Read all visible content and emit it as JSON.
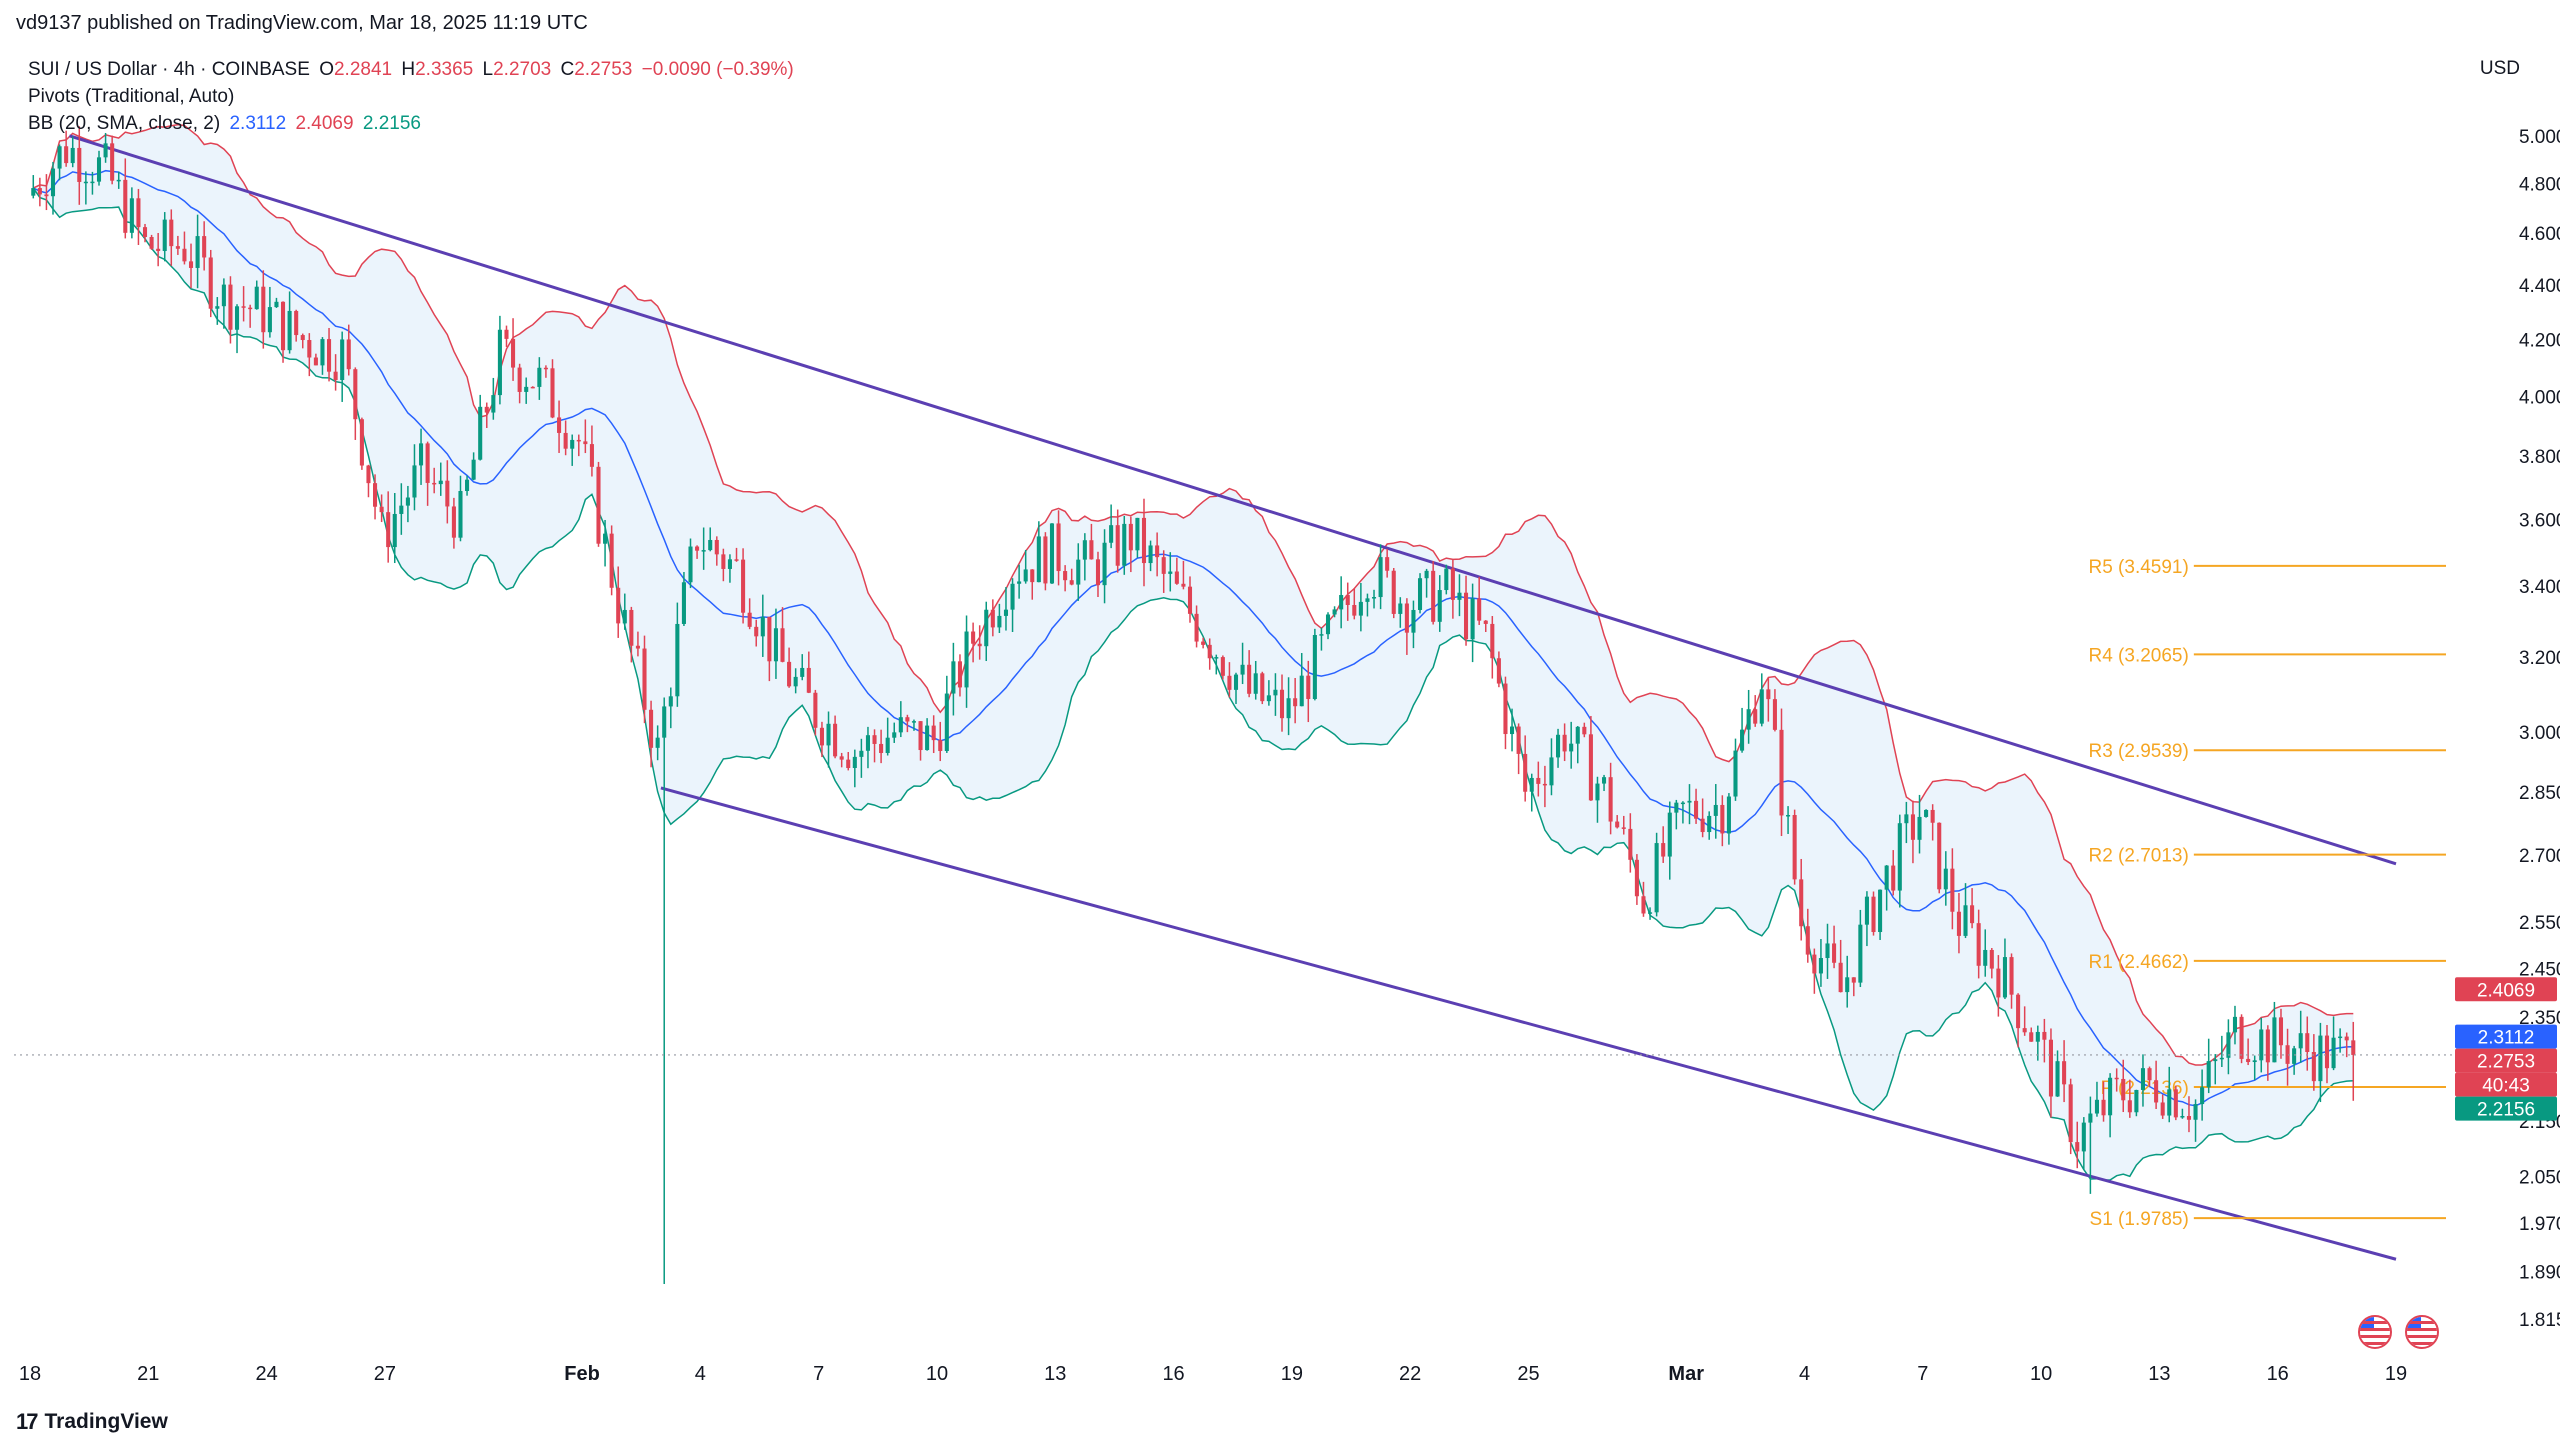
{
  "header": {
    "published": "vd9137 published on TradingView.com, Mar 18, 2025 11:19 UTC"
  },
  "legend": {
    "symbol": "SUI / US Dollar · 4h · COINBASE",
    "o_label": "O",
    "o_value": "2.2841",
    "h_label": "H",
    "h_value": "2.3365",
    "l_label": "L",
    "l_value": "2.2703",
    "c_label": "C",
    "c_value": "2.2753",
    "change": "−0.0090 (−0.39%)",
    "pivots": "Pivots (Traditional, Auto)",
    "bb": "BB (20, SMA, close, 2)",
    "bb_mid": "2.3112",
    "bb_upper": "2.4069",
    "bb_lower": "2.2156"
  },
  "axis": {
    "currency": "USD"
  },
  "footer": {
    "brand": "TradingView"
  },
  "colors": {
    "up": "#089981",
    "down": "#e04354",
    "upper_band": "#e04354",
    "lower_band": "#089981",
    "basis": "#2962ff",
    "band_fill": "#e3f0fb",
    "channel": "#5b3fb2",
    "pivot": "#f5a623"
  },
  "chart_data": {
    "type": "candlestick",
    "symbol": "SUI / US Dollar",
    "timeframe": "4h",
    "y_scale": "log",
    "ylim": [
      1.79,
      5.2
    ],
    "y_ticks": [
      "5.0000",
      "4.8000",
      "4.6000",
      "4.4000",
      "4.2000",
      "4.0000",
      "3.8000",
      "3.6000",
      "3.4000",
      "3.2000",
      "3.0000",
      "2.8500",
      "2.7000",
      "2.5500",
      "2.4500",
      "2.3500",
      "2.1500",
      "2.0500",
      "1.9700",
      "1.8900",
      "1.8150"
    ],
    "x_ticks": [
      "18",
      "21",
      "24",
      "27",
      "Feb",
      "4",
      "7",
      "10",
      "13",
      "16",
      "19",
      "22",
      "25",
      "Mar",
      "4",
      "7",
      "10",
      "13",
      "16",
      "19"
    ],
    "price_path": [
      [
        "Jan 18",
        4.75
      ],
      [
        "Jan 19",
        4.95
      ],
      [
        "Jan 20",
        4.85
      ],
      [
        "Jan 21",
        4.55
      ],
      [
        "Jan 22",
        4.55
      ],
      [
        "Jan 23",
        4.35
      ],
      [
        "Jan 24",
        4.3
      ],
      [
        "Jan 25",
        4.2
      ],
      [
        "Jan 26",
        4.15
      ],
      [
        "Jan 27",
        3.55
      ],
      [
        "Jan 28",
        3.75
      ],
      [
        "Jan 29",
        3.6
      ],
      [
        "Jan 30",
        4.15
      ],
      [
        "Jan 31",
        4.05
      ],
      [
        "Feb 1",
        3.85
      ],
      [
        "Feb 2",
        3.35
      ],
      [
        "Feb 3",
        2.95
      ],
      [
        "Feb 4",
        3.55
      ],
      [
        "Feb 5",
        3.45
      ],
      [
        "Feb 6",
        3.2
      ],
      [
        "Feb 7",
        3.05
      ],
      [
        "Feb 8",
        2.95
      ],
      [
        "Feb 9",
        3.0
      ],
      [
        "Feb 10",
        2.98
      ],
      [
        "Feb 11",
        3.25
      ],
      [
        "Feb 12",
        3.45
      ],
      [
        "Feb 13",
        3.5
      ],
      [
        "Feb 14",
        3.45
      ],
      [
        "Feb 15",
        3.55
      ],
      [
        "Feb 16",
        3.4
      ],
      [
        "Feb 17",
        3.25
      ],
      [
        "Feb 18",
        3.1
      ],
      [
        "Feb 19",
        3.05
      ],
      [
        "Feb 20",
        3.25
      ],
      [
        "Feb 21",
        3.45
      ],
      [
        "Feb 22",
        3.35
      ],
      [
        "Feb 23",
        3.38
      ],
      [
        "Feb 24",
        3.25
      ],
      [
        "Feb 25",
        2.85
      ],
      [
        "Feb 26",
        3.0
      ],
      [
        "Feb 27",
        2.85
      ],
      [
        "Feb 28",
        2.6
      ],
      [
        "Mar 1",
        2.8
      ],
      [
        "Mar 2",
        2.82
      ],
      [
        "Mar 3",
        3.15
      ],
      [
        "Mar 4",
        2.55
      ],
      [
        "Mar 5",
        2.4
      ],
      [
        "Mar 6",
        2.62
      ],
      [
        "Mar 7",
        2.8
      ],
      [
        "Mar 8",
        2.55
      ],
      [
        "Mar 9",
        2.45
      ],
      [
        "Mar 10",
        2.3
      ],
      [
        "Mar 11",
        2.12
      ],
      [
        "Mar 12",
        2.2
      ],
      [
        "Mar 13",
        2.22
      ],
      [
        "Mar 14",
        2.18
      ],
      [
        "Mar 15",
        2.32
      ],
      [
        "Mar 16",
        2.3
      ],
      [
        "Mar 17",
        2.28
      ],
      [
        "Mar 18",
        2.2753
      ]
    ],
    "bollinger": {
      "period": 20,
      "mult": 2,
      "last": {
        "basis": 2.3112,
        "upper": 2.4069,
        "lower": 2.2156
      }
    },
    "pivots": [
      {
        "label": "R5 (3.4591)",
        "value": 3.4591
      },
      {
        "label": "R4 (3.2065)",
        "value": 3.2065
      },
      {
        "label": "R3 (2.9539)",
        "value": 2.9539
      },
      {
        "label": "R2 (2.7013)",
        "value": 2.7013
      },
      {
        "label": "R1 (2.4662)",
        "value": 2.4662
      },
      {
        "label": "P (2.2136)",
        "value": 2.2136
      },
      {
        "label": "S1 (1.9785)",
        "value": 1.9785
      }
    ],
    "channel": {
      "upper": [
        [
          "Jan 19",
          5.0
        ],
        [
          "Mar 19",
          2.68
        ]
      ],
      "lower": [
        [
          "Feb 3",
          2.86
        ],
        [
          "Mar 19",
          1.91
        ]
      ]
    },
    "price_tags": [
      {
        "label": "2.4069",
        "value": 2.4069,
        "color": "#e04354"
      },
      {
        "label": "2.3112",
        "value": 2.3112,
        "color": "#2962ff"
      },
      {
        "label": "2.2753",
        "value": 2.2753,
        "color": "#e04354"
      },
      {
        "label": "40:43",
        "value": 2.24,
        "color": "#e04354"
      },
      {
        "label": "2.2156",
        "value": 2.2156,
        "color": "#089981"
      }
    ],
    "last_price": 2.2753
  }
}
